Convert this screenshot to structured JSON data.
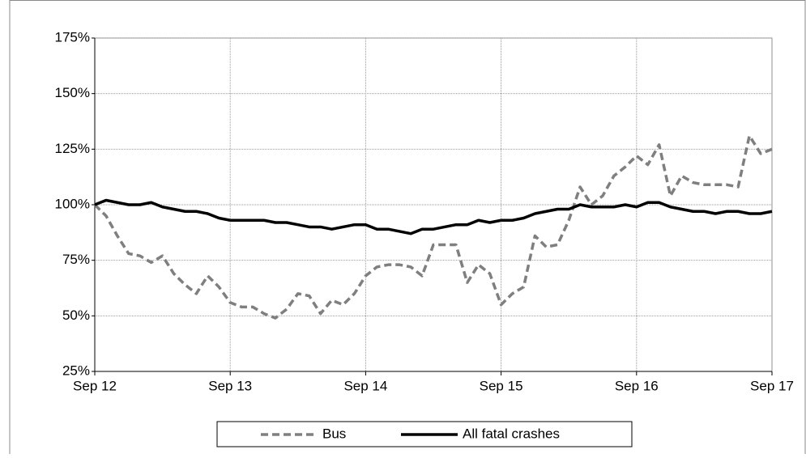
{
  "chart_data": {
    "type": "line",
    "categories": [
      "Sep 12",
      null,
      null,
      null,
      null,
      null,
      null,
      null,
      null,
      null,
      null,
      null,
      "Sep 13",
      null,
      null,
      null,
      null,
      null,
      null,
      null,
      null,
      null,
      null,
      null,
      "Sep 14",
      null,
      null,
      null,
      null,
      null,
      null,
      null,
      null,
      null,
      null,
      null,
      "Sep 15",
      null,
      null,
      null,
      null,
      null,
      null,
      null,
      null,
      null,
      null,
      null,
      "Sep 16",
      null,
      null,
      null,
      null,
      null,
      null,
      null,
      null,
      null,
      null,
      null,
      "Sep 17"
    ],
    "series": [
      {
        "name": "Bus",
        "color": "#7f7f7f",
        "dashed": true,
        "values": [
          100,
          95,
          86,
          78,
          77,
          74,
          77,
          69,
          64,
          60,
          68,
          63,
          56,
          54,
          54,
          51,
          49,
          53,
          60,
          59,
          51,
          57,
          55,
          60,
          68,
          72,
          73,
          73,
          72,
          68,
          82,
          82,
          82,
          65,
          73,
          69,
          55,
          60,
          63,
          86,
          81,
          82,
          93,
          108,
          100,
          104,
          113,
          117,
          122,
          118,
          127,
          104,
          113,
          110,
          109,
          109,
          109,
          108,
          131,
          123,
          125
        ]
      },
      {
        "name": "All fatal crashes",
        "color": "#000000",
        "dashed": false,
        "values": [
          100,
          102,
          101,
          100,
          100,
          101,
          99,
          98,
          97,
          97,
          96,
          94,
          93,
          93,
          93,
          93,
          92,
          92,
          91,
          90,
          90,
          89,
          90,
          91,
          91,
          89,
          89,
          88,
          87,
          89,
          89,
          90,
          91,
          91,
          93,
          92,
          93,
          93,
          94,
          96,
          97,
          98,
          98,
          100,
          99,
          99,
          99,
          100,
          99,
          101,
          101,
          99,
          98,
          97,
          97,
          96,
          97,
          97,
          96,
          96,
          97
        ]
      }
    ],
    "ylim": [
      25,
      175
    ],
    "yticks": [
      {
        "value": 25,
        "label": "25%"
      },
      {
        "value": 50,
        "label": "50%"
      },
      {
        "value": 75,
        "label": "75%"
      },
      {
        "value": 100,
        "label": "100%"
      },
      {
        "value": 125,
        "label": "125%"
      },
      {
        "value": 150,
        "label": "150%"
      },
      {
        "value": 175,
        "label": "175%"
      }
    ],
    "grid": true,
    "legend": "bottom"
  }
}
